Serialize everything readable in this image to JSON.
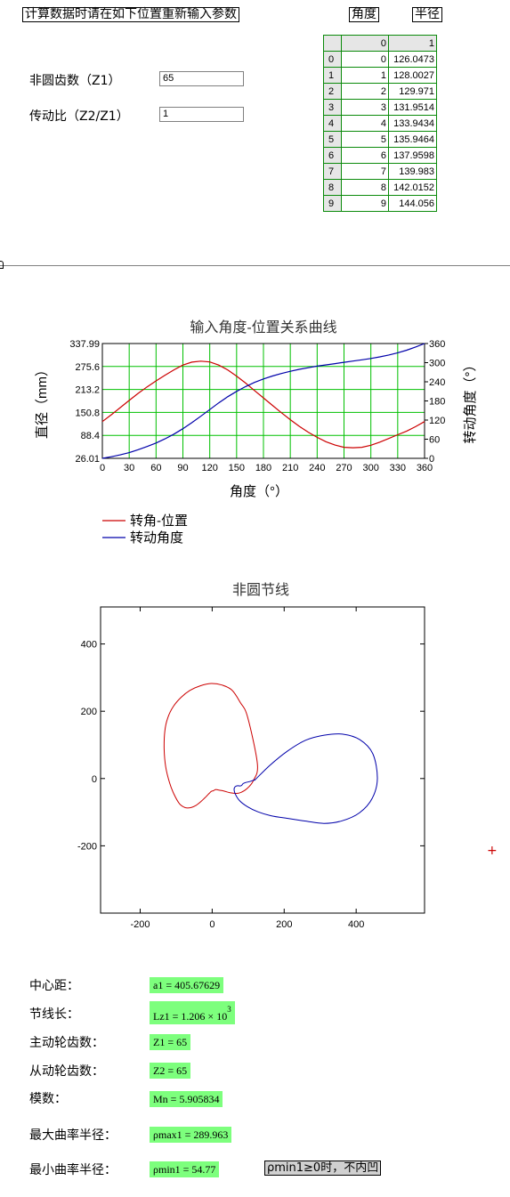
{
  "header": {
    "instruction": "计算数据时请在如下位置重新输入参数",
    "btn_angle": "角度",
    "btn_radius": "半径"
  },
  "params": {
    "z1_label": "非圆齿数（Z1）",
    "z1_value": "65",
    "ratio_label": "传动比（Z2/Z1）",
    "ratio_value": "1"
  },
  "matrix": {
    "col_headers": [
      "0",
      "1"
    ],
    "rows": [
      {
        "i": "0",
        "a": "0",
        "b": "126.0473"
      },
      {
        "i": "1",
        "a": "1",
        "b": "128.0027"
      },
      {
        "i": "2",
        "a": "2",
        "b": "129.971"
      },
      {
        "i": "3",
        "a": "3",
        "b": "131.9514"
      },
      {
        "i": "4",
        "a": "4",
        "b": "133.9434"
      },
      {
        "i": "5",
        "a": "5",
        "b": "135.9464"
      },
      {
        "i": "6",
        "a": "6",
        "b": "137.9598"
      },
      {
        "i": "7",
        "a": "7",
        "b": "139.983"
      },
      {
        "i": "8",
        "a": "8",
        "b": "142.0152"
      },
      {
        "i": "9",
        "a": "9",
        "b": "144.056"
      }
    ]
  },
  "chart_data": [
    {
      "type": "line",
      "title": "输入角度-位置关系曲线",
      "xlabel": "角度（°）",
      "ylabel": "直径（mm）",
      "y2label": "转动角度（°）",
      "xlim": [
        0,
        360
      ],
      "ylim": [
        26.01,
        337.99
      ],
      "y2lim": [
        0,
        360
      ],
      "xticks": [
        "0",
        "30",
        "60",
        "90",
        "120",
        "150",
        "180",
        "210",
        "240",
        "270",
        "300",
        "330",
        "360"
      ],
      "yticks": [
        "26.01",
        "88.4",
        "150.8",
        "213.2",
        "275.6",
        "337.99"
      ],
      "y2ticks": [
        "0",
        "60",
        "120",
        "180",
        "240",
        "300",
        "360"
      ],
      "grid": true,
      "legend_position": "bottom-left",
      "series": [
        {
          "name": "转角-位置",
          "color": "#cc0000",
          "axis": "left",
          "x": [
            0,
            10,
            20,
            30,
            40,
            50,
            60,
            70,
            80,
            90,
            100,
            110,
            120,
            130,
            140,
            150,
            160,
            170,
            180,
            190,
            200,
            210,
            220,
            230,
            240,
            250,
            260,
            270,
            280,
            290,
            300,
            310,
            320,
            330,
            340,
            350,
            360
          ],
          "y": [
            126.0,
            144.5,
            163.9,
            183.5,
            202.5,
            220.3,
            236.3,
            252.0,
            266.4,
            279.4,
            287.5,
            290.0,
            288.0,
            279.5,
            266.5,
            249.5,
            230.5,
            210.3,
            190.2,
            170.0,
            150.0,
            131.0,
            113.0,
            97.0,
            83.0,
            71.0,
            62.0,
            56.0,
            54.8,
            56.0,
            61.5,
            70.0,
            80.0,
            90.0,
            100.0,
            112.0,
            126.0
          ]
        },
        {
          "name": "转动角度",
          "color": "#0000aa",
          "axis": "right",
          "x": [
            0,
            10,
            20,
            30,
            40,
            50,
            60,
            70,
            80,
            90,
            100,
            110,
            120,
            130,
            140,
            150,
            160,
            170,
            180,
            190,
            200,
            210,
            220,
            230,
            240,
            250,
            260,
            270,
            280,
            290,
            300,
            310,
            320,
            330,
            340,
            350,
            360
          ],
          "y": [
            0,
            5,
            11,
            18,
            27,
            37,
            48,
            61,
            76,
            93,
            112,
            132,
            153,
            174,
            193,
            210,
            225,
            238,
            249,
            258,
            266,
            273,
            279,
            284,
            289,
            293,
            297,
            301,
            305,
            309,
            313,
            318,
            324,
            331,
            339,
            349,
            360
          ]
        }
      ]
    },
    {
      "type": "line",
      "title": "非圆节线",
      "xlim": [
        -310,
        590
      ],
      "ylim": [
        -400,
        510
      ],
      "xticks": [
        "-200",
        "0",
        "200",
        "400"
      ],
      "yticks": [
        "-200",
        "0",
        "200",
        "400"
      ],
      "grid": false,
      "series": [
        {
          "color": "#cc0000",
          "x": [
            125.6,
            98.3,
            78.2,
            54.8,
            27.0,
            -3.0,
            -33.2,
            -62.1,
            -86.6,
            -107.5,
            -123.2,
            -131.6,
            -133.4,
            -129.2,
            -118.7,
            -106.5,
            -90.6,
            -74.8,
            -59.6,
            -44.8,
            -31.6,
            -19.8,
            -10.3,
            -2.6,
            3.5,
            10.0,
            18.4,
            30.8,
            49.8,
            73.4,
            96.8,
            115.0,
            125.6
          ],
          "y": [
            43.3,
            183.6,
            225.9,
            263.0,
            277.9,
            282.5,
            275.7,
            261.8,
            241.2,
            214.9,
            181.2,
            140.8,
            88.4,
            36.0,
            -11.3,
            -45.4,
            -75.1,
            -86.4,
            -86.4,
            -79.7,
            -68.7,
            -56.8,
            -46.4,
            -38.3,
            -36.3,
            -32.6,
            -34.4,
            -36.4,
            -42.3,
            -43.6,
            -30.0,
            -5.0,
            43.3
          ]
        },
        {
          "color": "#0000aa",
          "x": [
            120.9,
            159.6,
            207.9,
            260.0,
            310.9,
            361.8,
            410.0,
            446.4,
            459.0,
            444.7,
            408.9,
            360.8,
            310.5,
            257.2,
            206.6,
            163.4,
            127.1,
            98.0,
            76.6,
            64.3,
            60.9,
            63.6,
            70.2,
            77.4,
            81.0,
            83.7,
            85.9,
            92.8,
            104.3,
            117.2,
            120.9
          ],
          "y": [
            -1.8,
            38.6,
            80.6,
            114.0,
            128.8,
            131.9,
            115.7,
            73.4,
            0.0,
            -58.8,
            -102.2,
            -125.8,
            -133.3,
            -126.1,
            -118.1,
            -110.7,
            -99.0,
            -83.7,
            -66.3,
            -46.2,
            -32.3,
            -24.6,
            -21.4,
            -22.1,
            -20.8,
            -18.3,
            -15.2,
            -12.0,
            -9.0,
            -4.0,
            -1.8
          ]
        }
      ]
    }
  ],
  "results": {
    "center_label": "中心距：",
    "center_value": "a1 = 405.67629",
    "pitch_label": "节线长：",
    "pitch_value": "Lz1 = 1.206 × 10",
    "pitch_exp": "3",
    "drive_label": "主动轮齿数：",
    "drive_value": "Z1 = 65",
    "driven_label": "从动轮齿数：",
    "driven_value": "Z2 = 65",
    "module_label": "模数：",
    "module_value": "Mn = 5.905834",
    "rmax_label": "最大曲率半径：",
    "rmax_value": "ρmax1 = 289.963",
    "rmin_label": "最小曲率半径：",
    "rmin_value": "ρmin1 = 54.77",
    "note": "ρmin1≥0时，不内凹"
  },
  "colors": {
    "grid": "#00c000",
    "red_series": "#cc0000",
    "blue_series": "#0000aa",
    "result_bg": "#7dff7d",
    "table_border": "#0a8a0a"
  }
}
